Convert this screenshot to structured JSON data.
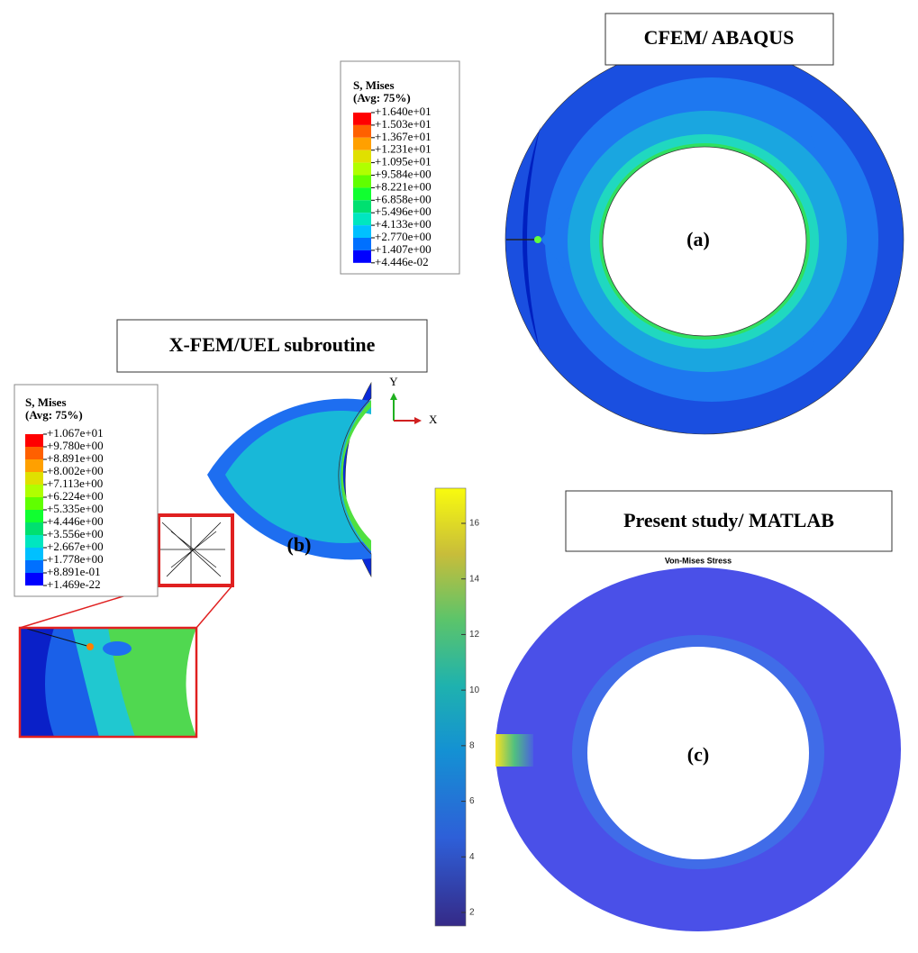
{
  "panel_a": {
    "title": "CFEM/ ABAQUS",
    "label": "(a)",
    "legend": {
      "title": "S, Mises",
      "subtitle": "(Avg: 75%)",
      "entries": [
        "+1.640e+01",
        "+1.503e+01",
        "+1.367e+01",
        "+1.231e+01",
        "+1.095e+01",
        "+9.584e+00",
        "+8.221e+00",
        "+6.858e+00",
        "+5.496e+00",
        "+4.133e+00",
        "+2.770e+00",
        "+1.407e+00",
        "+4.446e-02"
      ]
    }
  },
  "panel_b": {
    "title": "X-FEM/UEL subroutine",
    "label": "(b)",
    "axes": [
      "Y",
      "X"
    ],
    "legend": {
      "title": "S, Mises",
      "subtitle": "(Avg: 75%)",
      "entries": [
        "+1.067e+01",
        "+9.780e+00",
        "+8.891e+00",
        "+8.002e+00",
        "+7.113e+00",
        "+6.224e+00",
        "+5.335e+00",
        "+4.446e+00",
        "+3.556e+00",
        "+2.667e+00",
        "+1.778e+00",
        "+8.891e-01",
        "+1.469e-22"
      ]
    }
  },
  "panel_c": {
    "title": "Present study/ MATLAB",
    "plot_title": "Von-Mises Stress",
    "label": "(c)",
    "colorbar_ticks": [
      2,
      4,
      6,
      8,
      10,
      12,
      14,
      16
    ]
  }
}
